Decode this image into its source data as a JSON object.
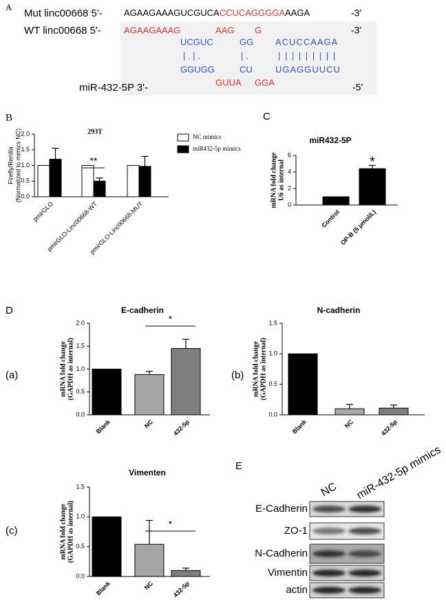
{
  "panel_a": {
    "label": "A",
    "mut": {
      "label": "Mut linc00668 5'-",
      "seq_black": "AGAAGAAAGUCGUCA",
      "seq_red": "CCUCAGGGGA",
      "seq_tail": "AAGA",
      "end": "-3'"
    },
    "wt": {
      "label": "WT linc00668 5'-",
      "red": [
        "AGAAGAAAG",
        "AAG",
        "G"
      ],
      "end": "-3'"
    },
    "top": [
      "UCGUC",
      "GG",
      "ACUCCAAGA"
    ],
    "pairs": [
      "| . | .",
      "| .",
      "|||||||||"
    ],
    "bottom": [
      "GGUGG",
      "CU",
      "UGAGGUUCU"
    ],
    "mir": {
      "label": "miR-432-5P 3'-",
      "red": [
        "GUUA",
        "GGA"
      ],
      "end": "-5'"
    }
  },
  "panel_d": {
    "label": "D"
  },
  "chart_data": [
    {
      "type": "bar",
      "panel": "B",
      "title": "293T",
      "ylabel": [
        "Firefly/Renilla",
        "(Normalized to mimics NC)"
      ],
      "categories": [
        "pmirGLO",
        "pmirGLO-Linc00668-WT",
        "pmirGLO-Linc00668-MUT"
      ],
      "series": [
        {
          "name": "NC mimics",
          "color": "#ffffff",
          "values": [
            1,
            1,
            1
          ]
        },
        {
          "name": "miR432-5p mimics",
          "color": "#000000",
          "values": [
            1.2,
            0.5,
            0.97
          ],
          "errors": [
            0.35,
            0.1,
            0.32
          ]
        }
      ],
      "ylim": [
        0,
        2
      ],
      "yticks": [
        {
          "value": 0,
          "label": "0.0"
        },
        0.5,
        {
          "value": 1,
          "label": "1.0"
        },
        1.5,
        {
          "value": 2,
          "label": "2.0"
        }
      ],
      "significance": "**"
    },
    {
      "type": "bar",
      "panel": "C",
      "title": "miR432-5P",
      "ylabel": [
        "mRNA fold change",
        "U6 as internal"
      ],
      "categories": [
        "Control",
        "OP-B (5 μmol/L)"
      ],
      "series": [
        {
          "color": "#000000",
          "values": [
            1,
            4.4
          ],
          "errors": [
            null,
            0.4
          ]
        }
      ],
      "ylim": [
        0,
        6
      ],
      "yticks": [
        0,
        2,
        4,
        6
      ],
      "significance": "*"
    },
    {
      "type": "bar",
      "panel": "(a)",
      "title": "E-cadherin",
      "ylabel": [
        "mRNA fold change",
        "(GAPDH as internal)"
      ],
      "categories": [
        "Blank",
        "NC",
        "432-5p"
      ],
      "series": [
        {
          "colors": [
            "#000000",
            "#a6a6a6",
            "#7f7f7f"
          ],
          "values": [
            1,
            0.88,
            1.45
          ],
          "errors": [
            null,
            0.07,
            0.2
          ]
        }
      ],
      "ylim": [
        0,
        2
      ],
      "yticks": [
        {
          "value": 0,
          "label": "0.0"
        },
        0.5,
        {
          "value": 1,
          "label": "1.0"
        },
        1.5,
        {
          "value": 2,
          "label": "2.0"
        }
      ],
      "significance": "*"
    },
    {
      "type": "bar",
      "panel": "(b)",
      "title": "N-cadherin",
      "ylabel": [
        "mRNA fold change",
        "(GAPDH as internal)"
      ],
      "categories": [
        "Blank",
        "NC",
        "432-5p"
      ],
      "series": [
        {
          "colors": [
            "#000000",
            "#a6a6a6",
            "#7f7f7f"
          ],
          "values": [
            1,
            0.1,
            0.11
          ],
          "errors": [
            null,
            0.07,
            0.05
          ]
        }
      ],
      "ylim": [
        0,
        1.5
      ],
      "yticks": [
        {
          "value": 0,
          "label": "0.0"
        },
        0.5,
        {
          "value": 1,
          "label": "1.0"
        },
        1.5
      ]
    },
    {
      "type": "bar",
      "panel": "(c)",
      "title": "Vimenten",
      "ylabel": [
        "mRNA fold change",
        "(GAPDH as internal)"
      ],
      "categories": [
        "Blank",
        "NC",
        "432-5p"
      ],
      "series": [
        {
          "colors": [
            "#000000",
            "#a6a6a6",
            "#7f7f7f"
          ],
          "values": [
            1,
            0.54,
            0.1
          ],
          "errors": [
            null,
            0.4,
            0.04
          ]
        }
      ],
      "ylim": [
        0,
        1.5
      ],
      "yticks": [
        {
          "value": 0,
          "label": "0.0"
        },
        0.5,
        {
          "value": 1,
          "label": "1.0"
        },
        1.5
      ],
      "significance": "*"
    }
  ],
  "panel_e": {
    "label": "E",
    "columns": [
      "NC",
      "miR-432-5p mimics"
    ],
    "rows": [
      "E-Cadherin",
      "ZO-1",
      "N-Cadherin",
      "Vimentin",
      "actin"
    ]
  }
}
